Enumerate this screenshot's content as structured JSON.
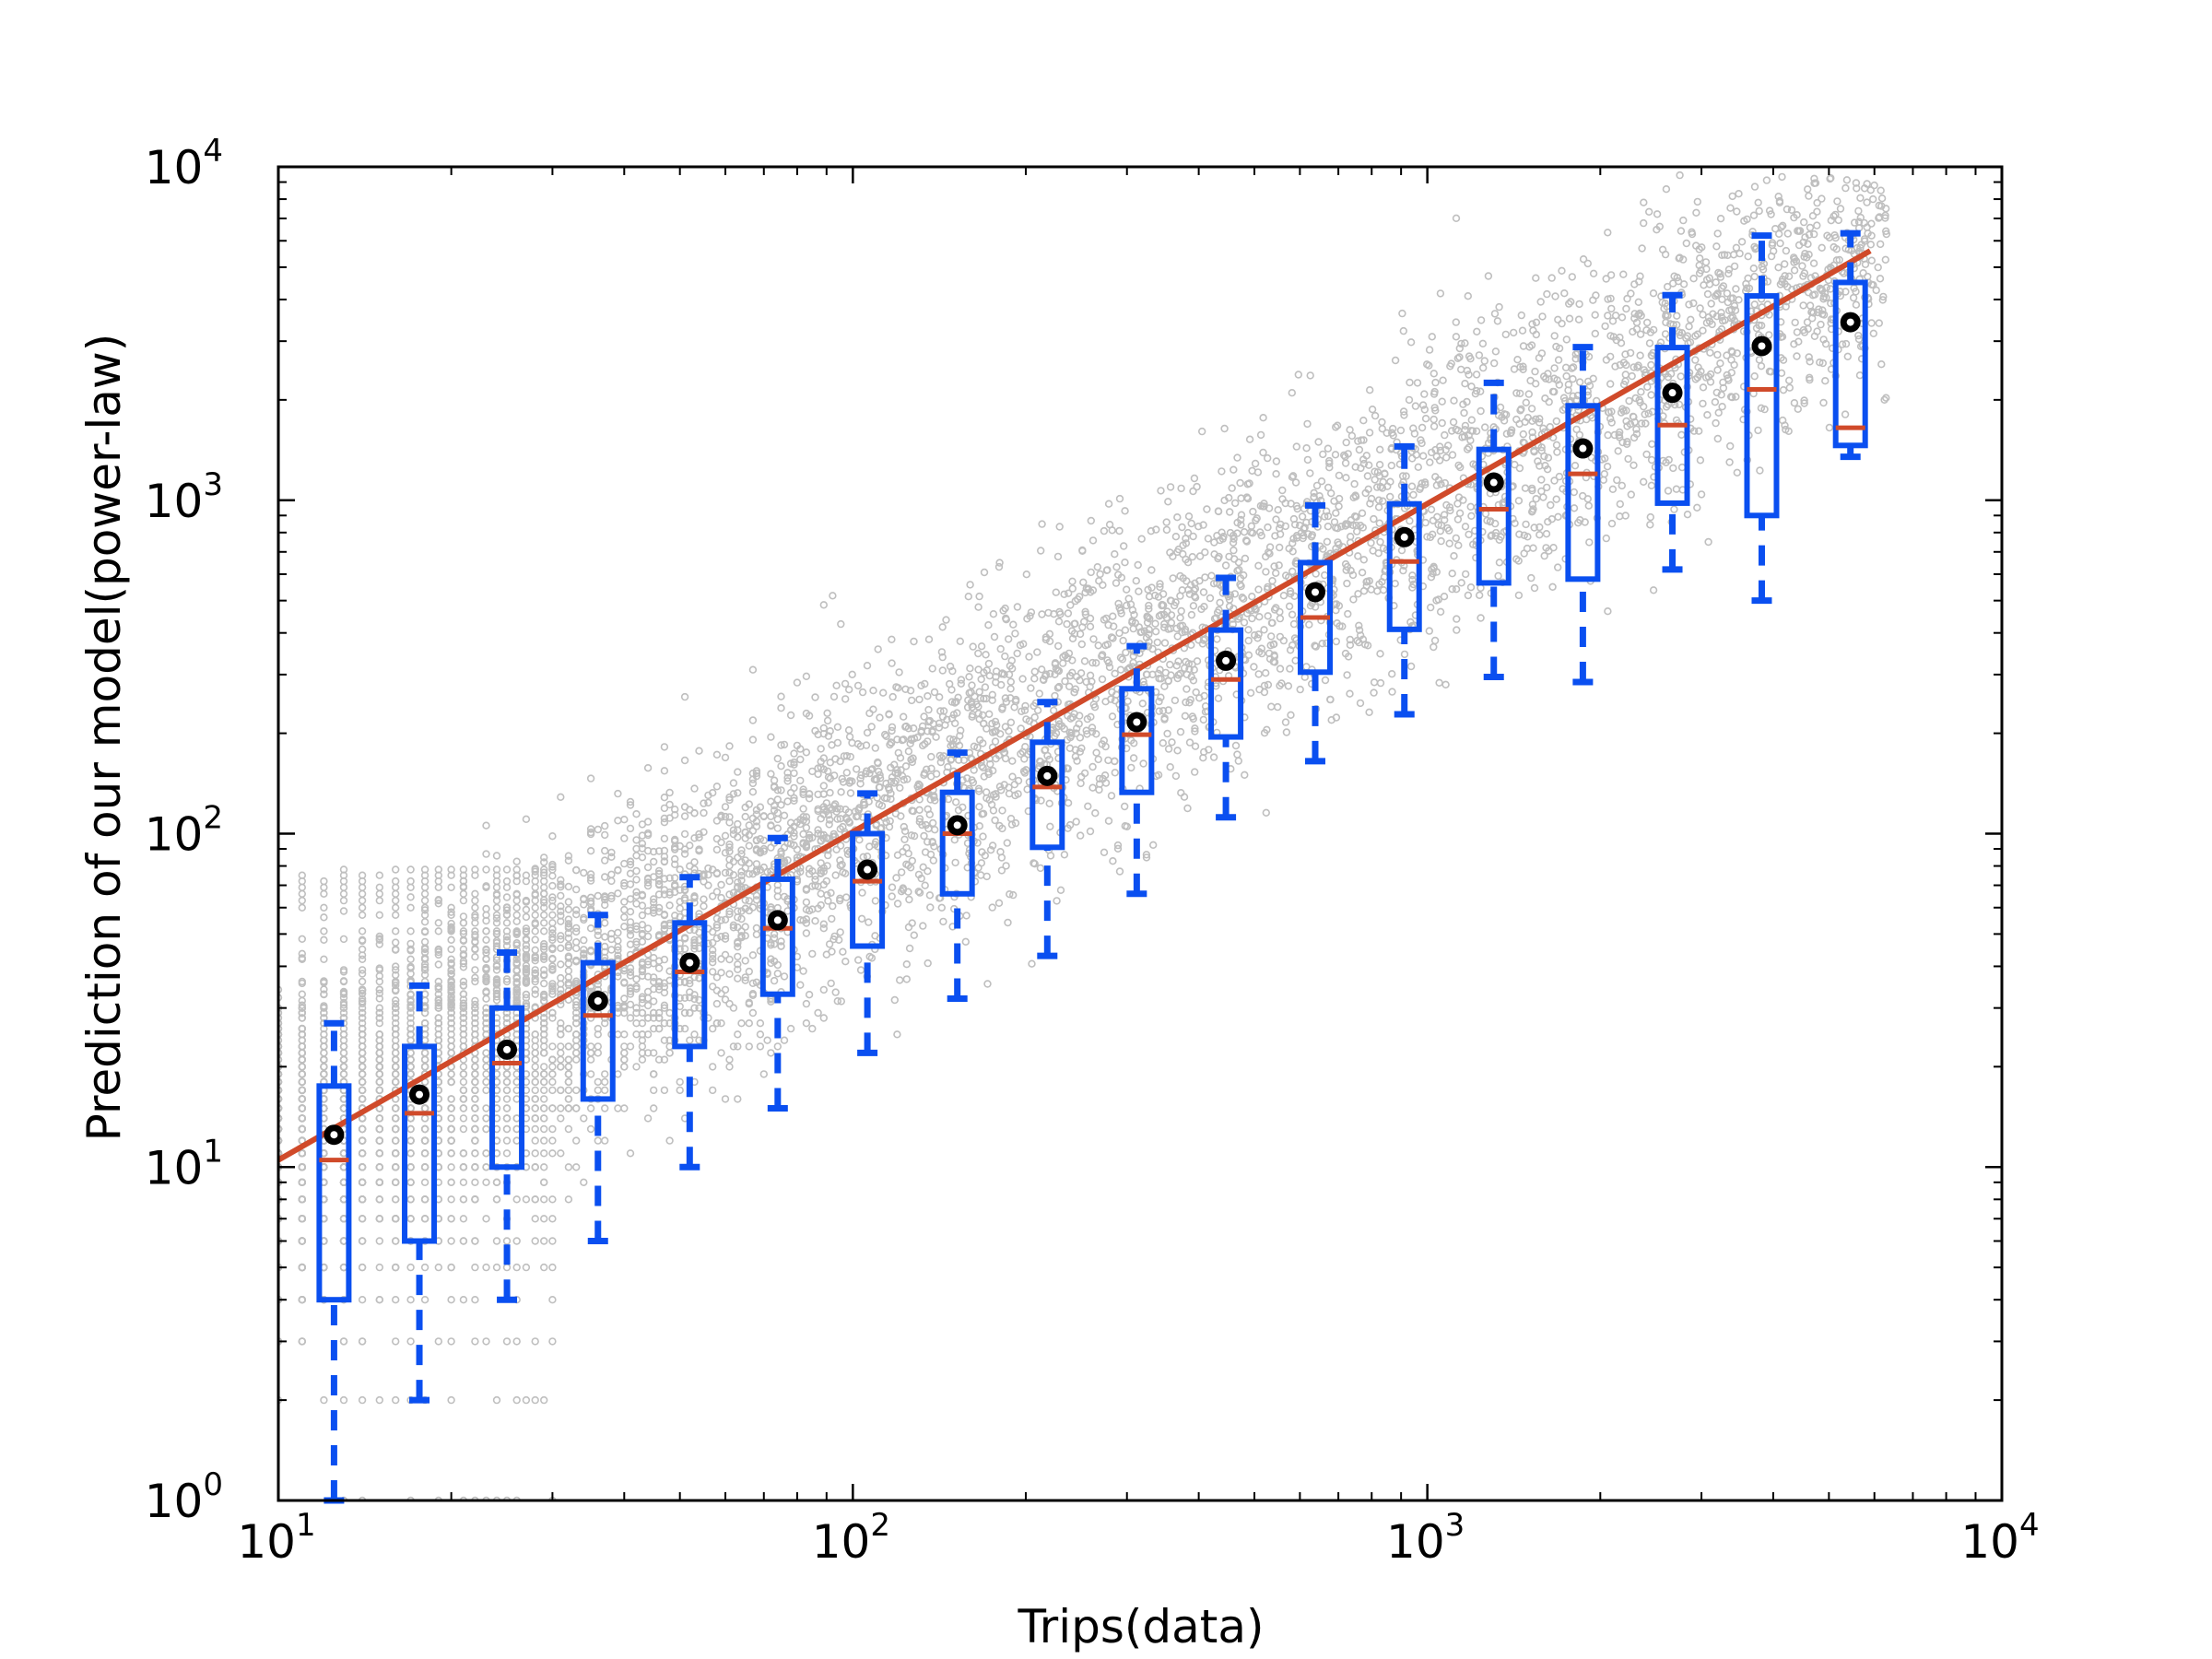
{
  "chart_data": {
    "type": "scatter",
    "title": "",
    "xlabel": "Trips(data)",
    "ylabel": "Prediction of our model(power-law)",
    "xscale": "log",
    "yscale": "log",
    "xlim": [
      10,
      10000
    ],
    "ylim": [
      1,
      10000
    ],
    "grid": false,
    "x_ticks": [
      {
        "base": "10",
        "exp": "1"
      },
      {
        "base": "10",
        "exp": "2"
      },
      {
        "base": "10",
        "exp": "3"
      },
      {
        "base": "10",
        "exp": "4"
      }
    ],
    "y_ticks": [
      {
        "base": "10",
        "exp": "0"
      },
      {
        "base": "10",
        "exp": "1"
      },
      {
        "base": "10",
        "exp": "2"
      },
      {
        "base": "10",
        "exp": "3"
      },
      {
        "base": "10",
        "exp": "4"
      }
    ],
    "colors": {
      "scatter": "#bfbfbf",
      "box": "#0a4ff0",
      "median": "#d04a2a",
      "fit_line": "#d04a2a",
      "mean_marker": "#000000",
      "mean_center": "#ffffff"
    },
    "fit_line": {
      "x": [
        10,
        5900
      ],
      "y": [
        10.5,
        5600
      ]
    },
    "boxes": [
      {
        "x": 12.5,
        "whisker_low": 1,
        "q1": 4,
        "median": 10.5,
        "q3": 17.5,
        "whisker_high": 27,
        "mean": 12.5
      },
      {
        "x": 17.6,
        "whisker_low": 2,
        "q1": 6,
        "median": 14.5,
        "q3": 23,
        "whisker_high": 35,
        "mean": 16.5
      },
      {
        "x": 25,
        "whisker_low": 4,
        "q1": 10,
        "median": 20.5,
        "q3": 30,
        "whisker_high": 44,
        "mean": 22.5
      },
      {
        "x": 36,
        "whisker_low": 6,
        "q1": 16,
        "median": 28.5,
        "q3": 41,
        "whisker_high": 57,
        "mean": 31.5
      },
      {
        "x": 52,
        "whisker_low": 10,
        "q1": 23,
        "median": 38.5,
        "q3": 54,
        "whisker_high": 74,
        "mean": 41
      },
      {
        "x": 74,
        "whisker_low": 15,
        "q1": 33,
        "median": 52,
        "q3": 73,
        "whisker_high": 97,
        "mean": 55
      },
      {
        "x": 106,
        "whisker_low": 22,
        "q1": 46,
        "median": 72,
        "q3": 100,
        "whisker_high": 132,
        "mean": 78
      },
      {
        "x": 152,
        "whisker_low": 32,
        "q1": 66,
        "median": 100,
        "q3": 133,
        "whisker_high": 175,
        "mean": 106
      },
      {
        "x": 218,
        "whisker_low": 43,
        "q1": 91,
        "median": 138,
        "q3": 188,
        "whisker_high": 248,
        "mean": 149
      },
      {
        "x": 312,
        "whisker_low": 66,
        "q1": 133,
        "median": 198,
        "q3": 272,
        "whisker_high": 365,
        "mean": 216
      },
      {
        "x": 446,
        "whisker_low": 112,
        "q1": 195,
        "median": 290,
        "q3": 408,
        "whisker_high": 585,
        "mean": 330
      },
      {
        "x": 638,
        "whisker_low": 165,
        "q1": 305,
        "median": 445,
        "q3": 650,
        "whisker_high": 965,
        "mean": 530
      },
      {
        "x": 912,
        "whisker_low": 228,
        "q1": 410,
        "median": 655,
        "q3": 975,
        "whisker_high": 1450,
        "mean": 775
      },
      {
        "x": 1305,
        "whisker_low": 295,
        "q1": 565,
        "median": 940,
        "q3": 1420,
        "whisker_high": 2250,
        "mean": 1130
      },
      {
        "x": 1865,
        "whisker_low": 285,
        "q1": 580,
        "median": 1200,
        "q3": 1920,
        "whisker_high": 2880,
        "mean": 1430
      },
      {
        "x": 2670,
        "whisker_low": 620,
        "q1": 980,
        "median": 1680,
        "q3": 2870,
        "whisker_high": 4120,
        "mean": 2100
      },
      {
        "x": 3820,
        "whisker_low": 500,
        "q1": 900,
        "median": 2150,
        "q3": 4100,
        "whisker_high": 6220,
        "mean": 2900
      },
      {
        "x": 5450,
        "whisker_low": 1350,
        "q1": 1460,
        "median": 1650,
        "q3": 4500,
        "whisker_high": 6320,
        "mean": 3420
      }
    ]
  }
}
